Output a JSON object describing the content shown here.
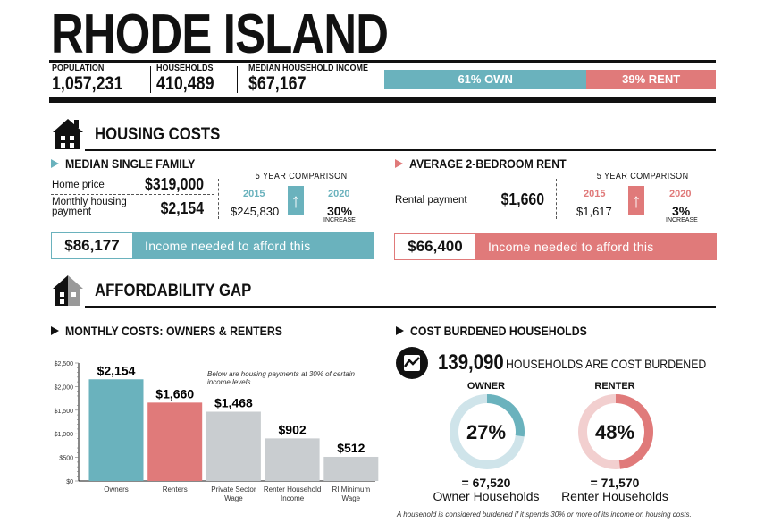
{
  "title": "RHODE ISLAND",
  "stats": [
    {
      "label": "POPULATION",
      "value": "1,057,231"
    },
    {
      "label": "HOUSEHOLDS",
      "value": "410,489"
    },
    {
      "label": "MEDIAN HOUSEHOLD INCOME",
      "value": "$67,167"
    }
  ],
  "tenure": {
    "own_label": "61% OWN",
    "own_pct": 61,
    "rent_label": "39% RENT",
    "rent_pct": 39
  },
  "colors": {
    "teal": "#6ab2bd",
    "salmon": "#e07a7a",
    "gray": "#c9cdd0",
    "teal_light": "#cfe4ea",
    "salmon_light": "#f2cfcf"
  },
  "housing_costs": {
    "title": "HOUSING COSTS",
    "single_family": {
      "title": "MEDIAN SINGLE FAMILY",
      "home_price_label": "Home price",
      "home_price": "$319,000",
      "monthly_label": "Monthly housing payment",
      "monthly": "$2,154",
      "comparison_title": "5 YEAR COMPARISON",
      "year1": "2015",
      "year1_value": "$245,830",
      "year2": "2020",
      "change": "30%",
      "change_label": "INCREASE",
      "income_needed": "$86,177",
      "income_label": "Income needed to afford this"
    },
    "rent": {
      "title": "AVERAGE 2-BEDROOM RENT",
      "payment_label": "Rental payment",
      "payment": "$1,660",
      "comparison_title": "5 YEAR COMPARISON",
      "year1": "2015",
      "year1_value": "$1,617",
      "year2": "2020",
      "change": "3%",
      "change_label": "INCREASE",
      "income_needed": "$66,400",
      "income_label": "Income needed to afford this"
    }
  },
  "affordability": {
    "title": "AFFORDABILITY GAP"
  },
  "monthly_costs": {
    "title": "MONTHLY COSTS: OWNERS & RENTERS",
    "note": "Below are housing payments at 30% of certain income levels"
  },
  "chart_data": [
    {
      "type": "bar",
      "categories": [
        "Owners",
        "Renters",
        "Private Sector Wage",
        "Renter Household Income",
        "RI Minimum Wage"
      ],
      "values": [
        2154,
        1660,
        1468,
        902,
        512
      ],
      "data_labels": [
        "$2,154",
        "$1,660",
        "$1,468",
        "$902",
        "$512"
      ],
      "bar_colors": [
        "#6ab2bd",
        "#e07a7a",
        "#c9cdd0",
        "#c9cdd0",
        "#c9cdd0"
      ],
      "yticks": [
        "$0",
        "$500",
        "$1,000",
        "$1,500",
        "$2,000",
        "$2,500"
      ],
      "ylim": [
        0,
        2500
      ]
    },
    {
      "type": "pie",
      "title": "COST BURDENED HOUSEHOLDS",
      "headline_value": "139,090",
      "headline_text": "HOUSEHOLDS ARE COST BURDENED",
      "donuts": [
        {
          "label": "OWNER",
          "percent": 27,
          "percent_label": "27%",
          "count": "= 67,520",
          "caption": "Owner Households"
        },
        {
          "label": "RENTER",
          "percent": 48,
          "percent_label": "48%",
          "count": "= 71,570",
          "caption": "Renter Households"
        }
      ],
      "footnote": "A household is considered burdened if it spends 30% or more of its income on housing costs."
    }
  ]
}
